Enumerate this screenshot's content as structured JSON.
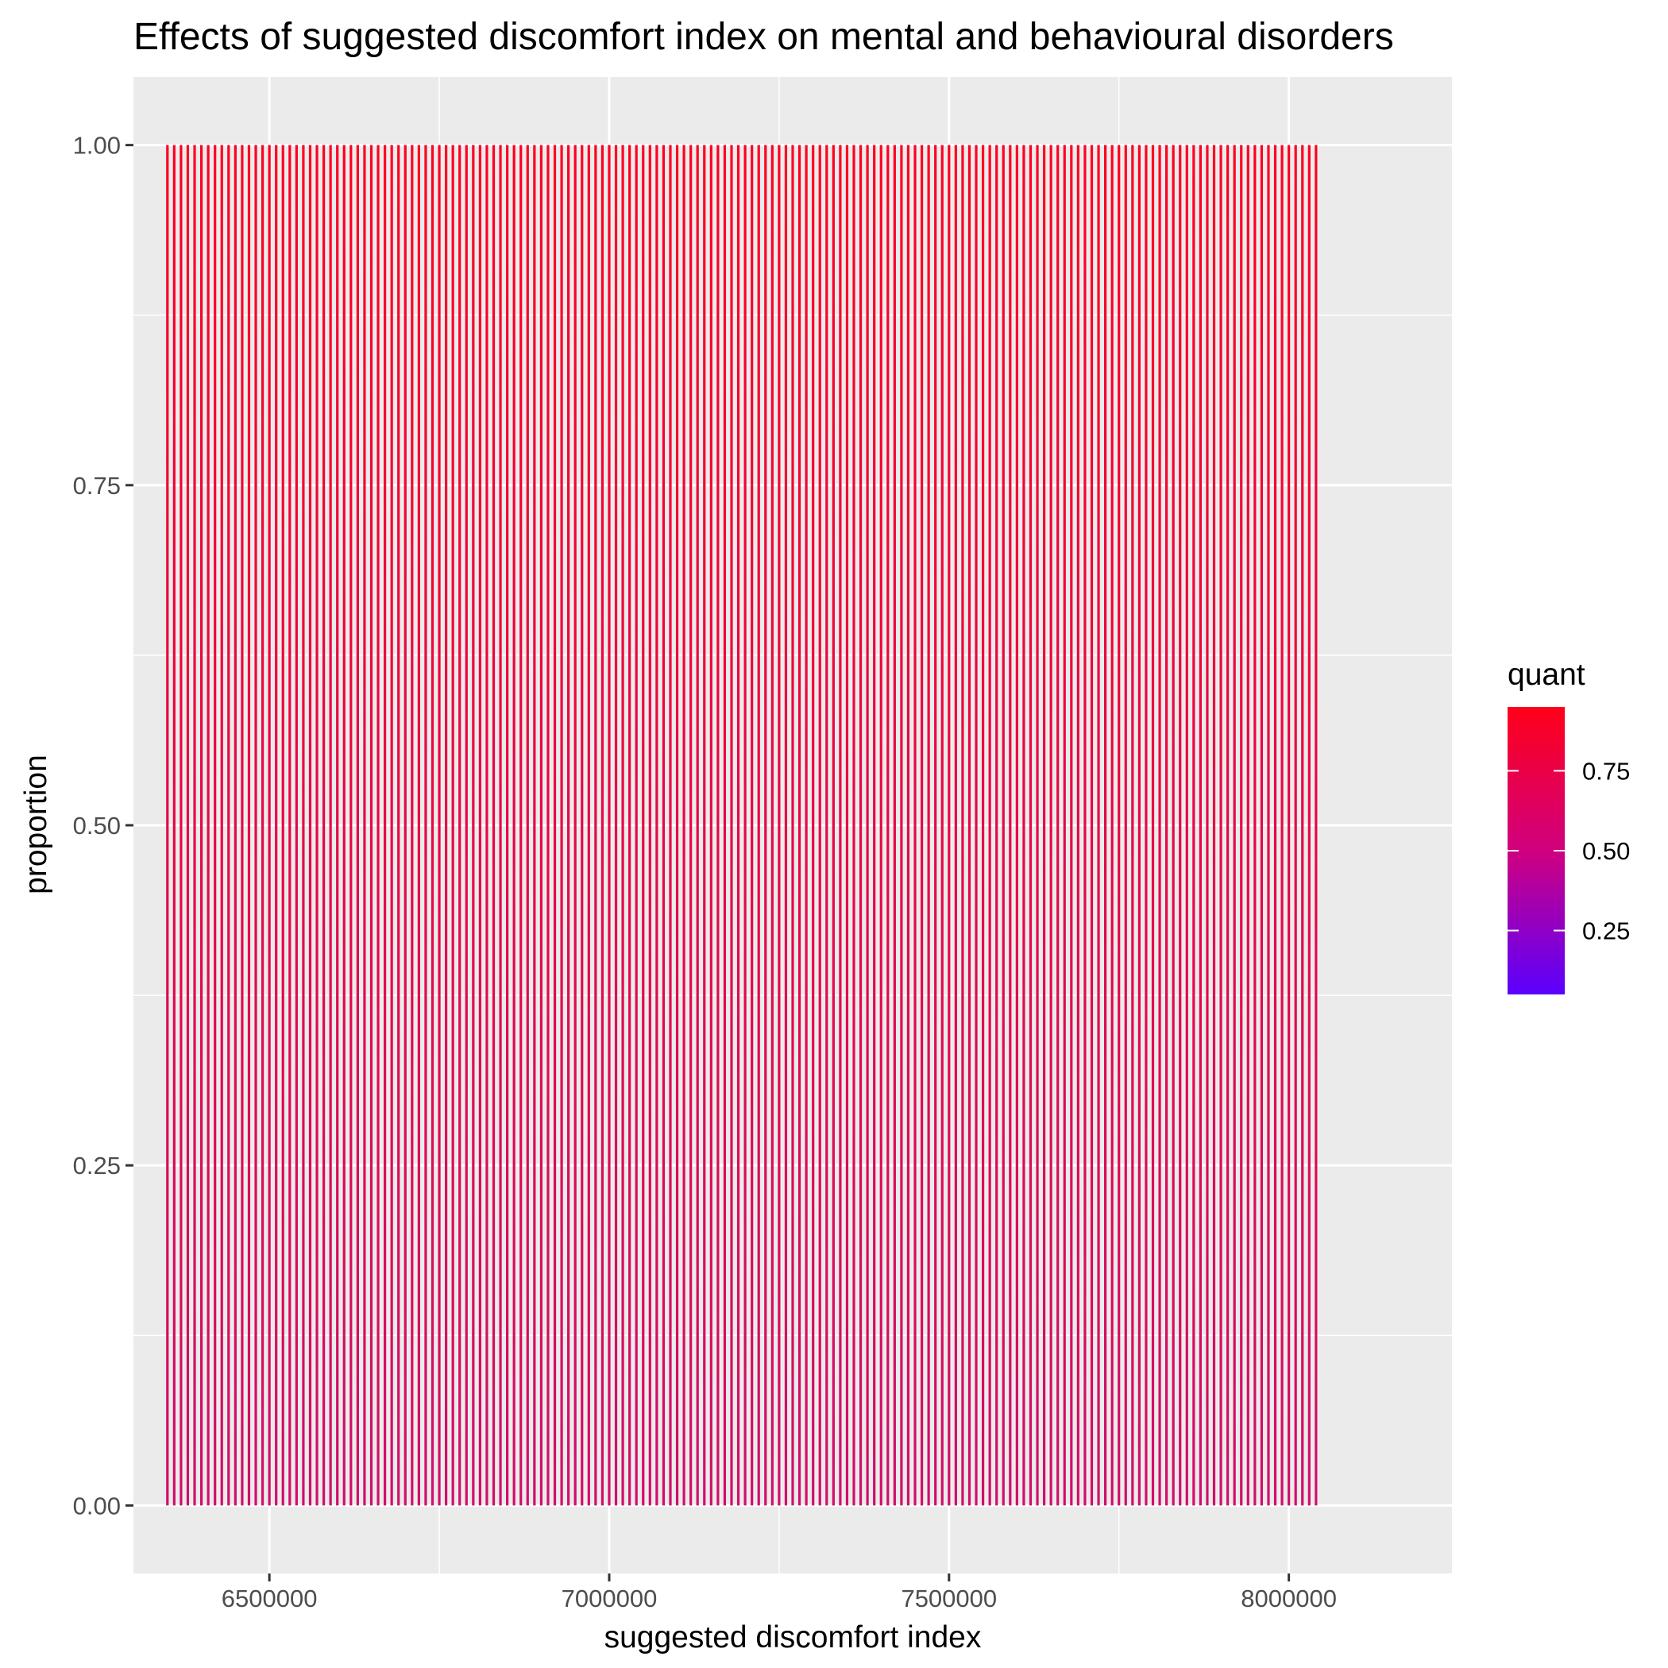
{
  "chart_data": {
    "type": "line",
    "title": "Effects of suggested discomfort index on mental and behavioural disorders",
    "xlabel": "suggested discomfort index",
    "ylabel": "proportion",
    "xlim": [
      6300000,
      8240000
    ],
    "ylim": [
      -0.05,
      1.05
    ],
    "x_ticks": [
      6500000,
      7000000,
      7500000,
      8000000
    ],
    "x_tick_labels": [
      "6500000",
      "7000000",
      "7500000",
      "8000000"
    ],
    "y_ticks": [
      0,
      0.25,
      0.5,
      0.75,
      1
    ],
    "y_tick_labels": [
      "0.00",
      "0.25",
      "0.50",
      "0.75",
      "1.00"
    ],
    "grid": true,
    "background": "#ebebeb",
    "series": {
      "x_start": 6350000,
      "x_end": 8040000,
      "x_step": 10000,
      "y_low": 0,
      "y_high": 1,
      "color_low": "#d10e6a",
      "color_high": "#ff0020"
    },
    "legend": {
      "title": "quant",
      "placement": "right",
      "scale_range": [
        0.05,
        0.95
      ],
      "color_low": "#5a00ff",
      "color_mid": "#d0007f",
      "color_high": "#ff0019",
      "breaks": [
        0.25,
        0.5,
        0.75
      ],
      "break_labels": [
        "0.25",
        "0.50",
        "0.75"
      ]
    }
  }
}
